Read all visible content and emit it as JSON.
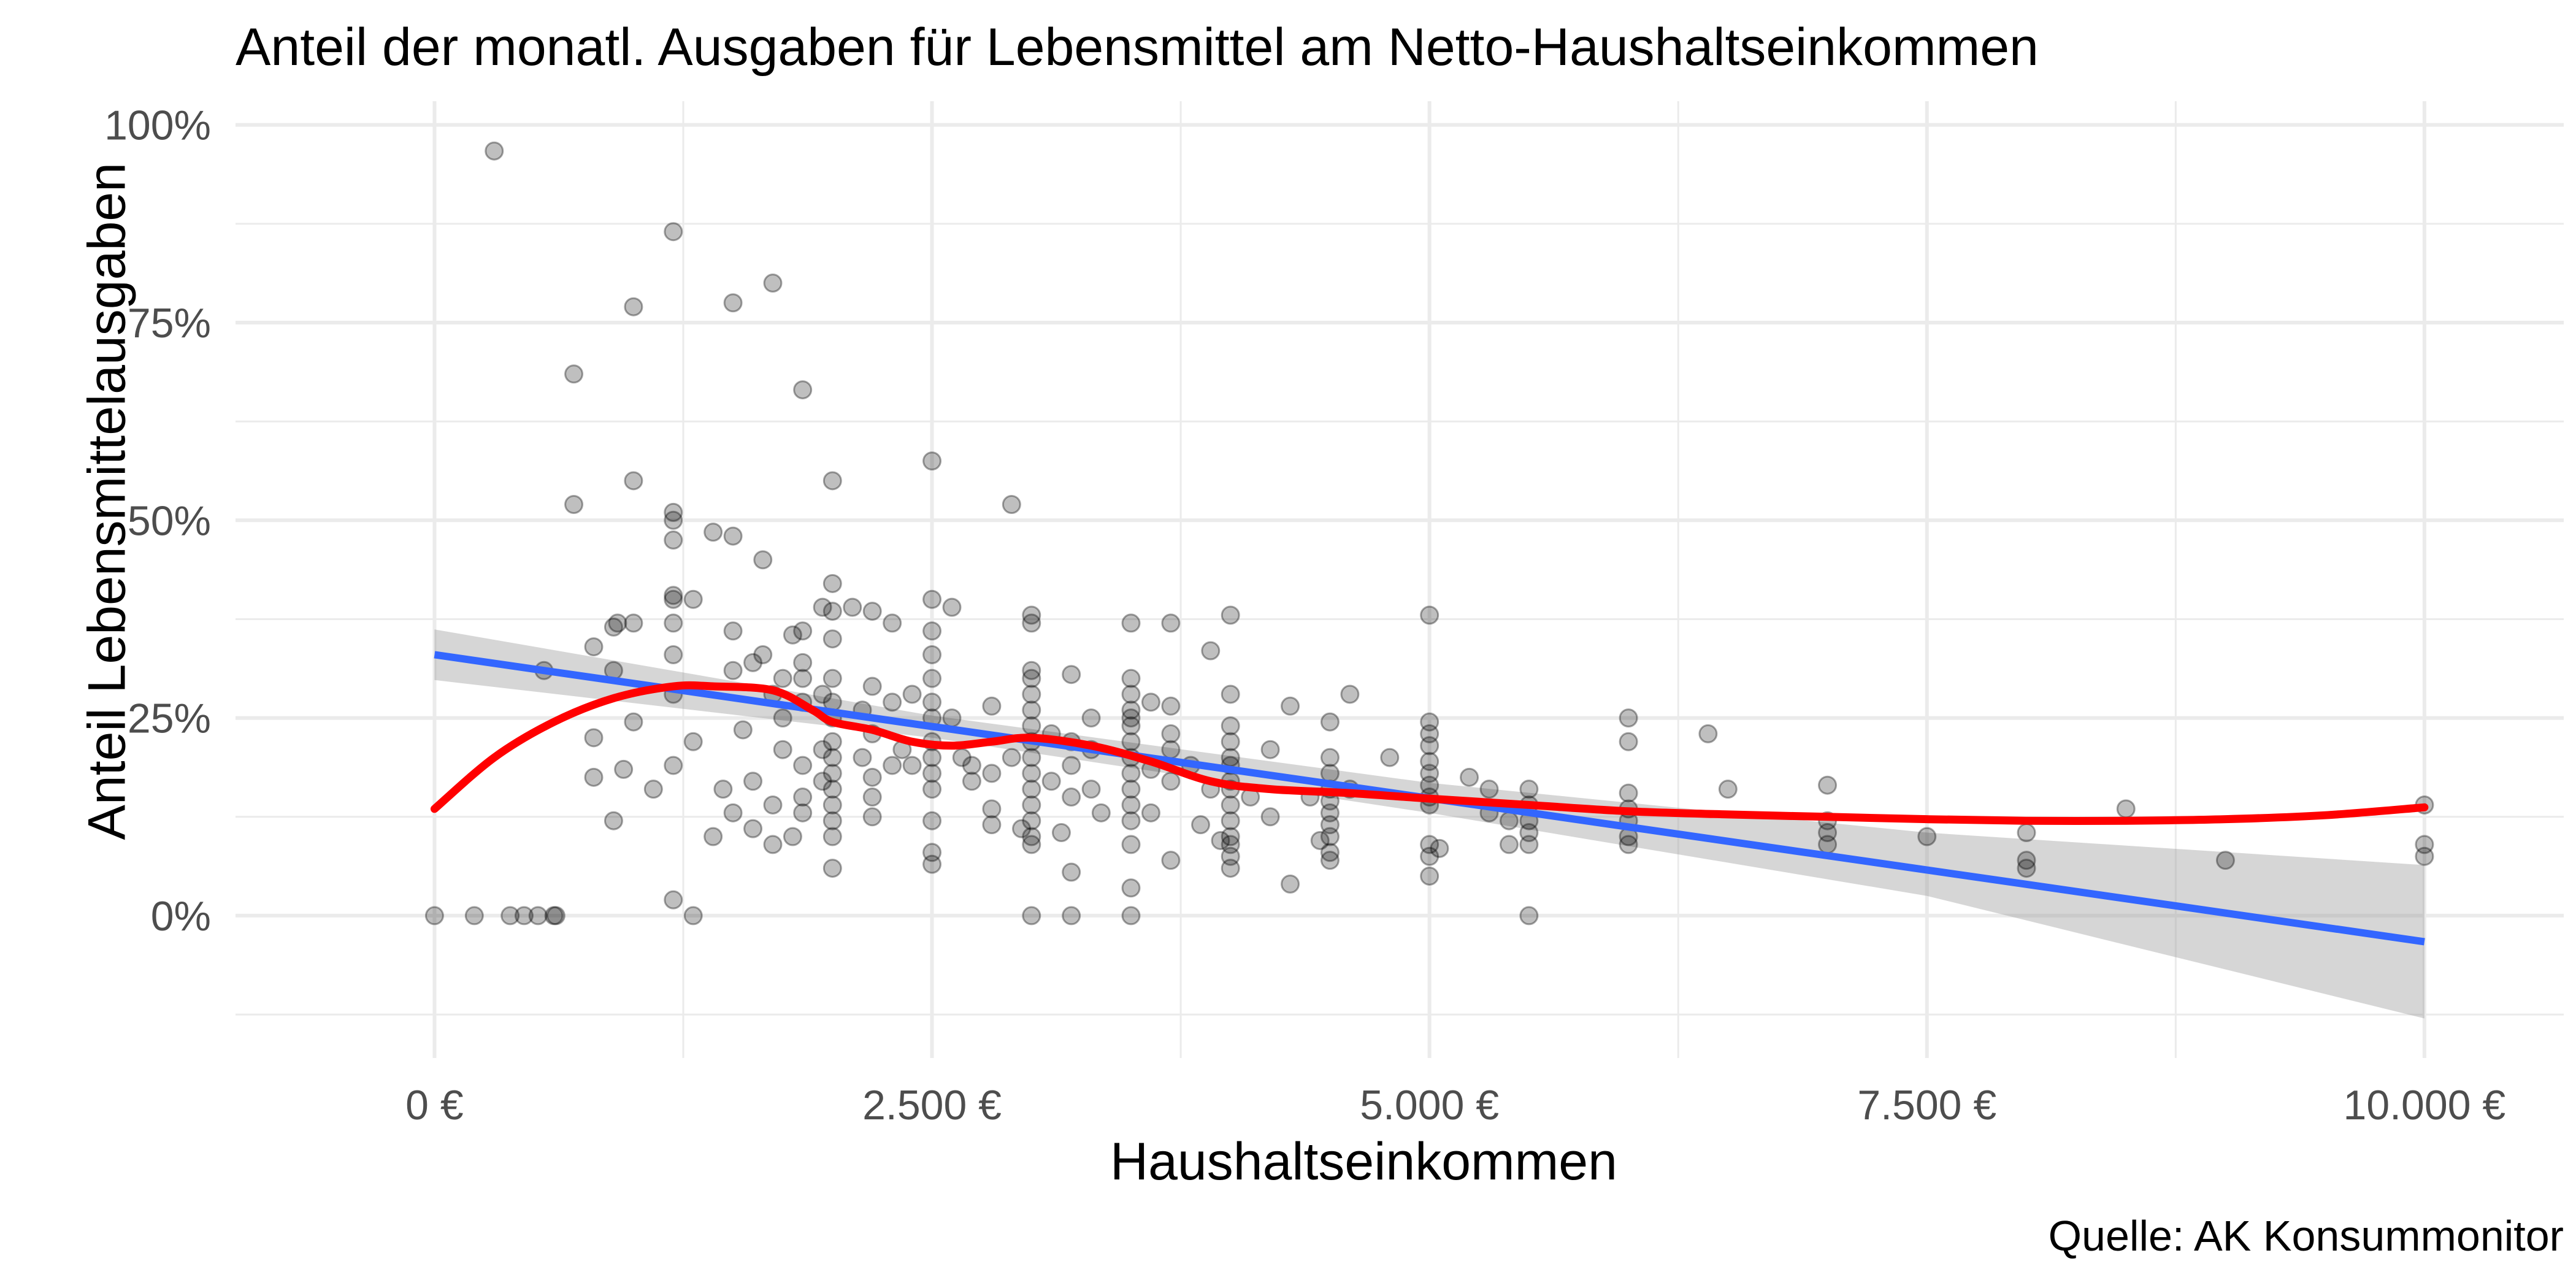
{
  "chart_data": {
    "type": "scatter",
    "title": "Anteil der monatl. Ausgaben für Lebensmittel am Netto-Haushaltseinkommen",
    "xlabel": "Haushaltseinkommen",
    "ylabel": "Anteil Lebensmittelausgaben",
    "caption": "Quelle: AK Konsummonitor",
    "xlim": [
      -1000,
      10700
    ],
    "ylim": [
      -0.18,
      1.03
    ],
    "x_ticks": [
      0,
      2500,
      5000,
      7500,
      10000
    ],
    "x_tick_labels": [
      "0 €",
      "2.500 €",
      "5.000 €",
      "7.500 €",
      "10.000 €"
    ],
    "y_ticks": [
      0,
      0.25,
      0.5,
      0.75,
      1.0
    ],
    "y_tick_labels": [
      "0%",
      "25%",
      "50%",
      "75%",
      "100%"
    ],
    "grid": true,
    "colors": {
      "points": "#000000",
      "linear_fit": "#3366ff",
      "loess": "#ff0000",
      "ci_band": "#999999",
      "grid": "#ebebeb"
    },
    "points": [
      [
        0,
        0
      ],
      [
        200,
        0
      ],
      [
        380,
        0
      ],
      [
        450,
        0
      ],
      [
        520,
        0
      ],
      [
        600,
        0
      ],
      [
        610,
        0
      ],
      [
        300,
        0.967
      ],
      [
        550,
        0.31
      ],
      [
        700,
        0.685
      ],
      [
        700,
        0.52
      ],
      [
        800,
        0.34
      ],
      [
        800,
        0.175
      ],
      [
        800,
        0.225
      ],
      [
        900,
        0.365
      ],
      [
        900,
        0.31
      ],
      [
        900,
        0.12
      ],
      [
        920,
        0.37
      ],
      [
        950,
        0.185
      ],
      [
        1000,
        0.77
      ],
      [
        1000,
        0.55
      ],
      [
        1000,
        0.37
      ],
      [
        1000,
        0.245
      ],
      [
        1100,
        0.16
      ],
      [
        1200,
        0.865
      ],
      [
        1200,
        0.51
      ],
      [
        1200,
        0.5
      ],
      [
        1200,
        0.475
      ],
      [
        1200,
        0.405
      ],
      [
        1200,
        0.4
      ],
      [
        1200,
        0.37
      ],
      [
        1200,
        0.33
      ],
      [
        1200,
        0.28
      ],
      [
        1200,
        0.19
      ],
      [
        1200,
        0.02
      ],
      [
        1300,
        0.4
      ],
      [
        1300,
        0.22
      ],
      [
        1300,
        0
      ],
      [
        1400,
        0.485
      ],
      [
        1400,
        0.1
      ],
      [
        1450,
        0.16
      ],
      [
        1500,
        0.775
      ],
      [
        1500,
        0.48
      ],
      [
        1500,
        0.36
      ],
      [
        1500,
        0.31
      ],
      [
        1500,
        0.13
      ],
      [
        1550,
        0.235
      ],
      [
        1600,
        0.32
      ],
      [
        1600,
        0.17
      ],
      [
        1600,
        0.11
      ],
      [
        1650,
        0.45
      ],
      [
        1650,
        0.33
      ],
      [
        1700,
        0.8
      ],
      [
        1700,
        0.28
      ],
      [
        1700,
        0.14
      ],
      [
        1700,
        0.09
      ],
      [
        1750,
        0.3
      ],
      [
        1750,
        0.25
      ],
      [
        1750,
        0.21
      ],
      [
        1800,
        0.355
      ],
      [
        1800,
        0.1
      ],
      [
        1850,
        0.665
      ],
      [
        1850,
        0.36
      ],
      [
        1850,
        0.32
      ],
      [
        1850,
        0.3
      ],
      [
        1850,
        0.27
      ],
      [
        1850,
        0.19
      ],
      [
        1850,
        0.15
      ],
      [
        1850,
        0.13
      ],
      [
        1950,
        0.39
      ],
      [
        1950,
        0.28
      ],
      [
        1950,
        0.21
      ],
      [
        1950,
        0.17
      ],
      [
        2000,
        0.55
      ],
      [
        2000,
        0.42
      ],
      [
        2000,
        0.385
      ],
      [
        2000,
        0.35
      ],
      [
        2000,
        0.3
      ],
      [
        2000,
        0.27
      ],
      [
        2000,
        0.25
      ],
      [
        2000,
        0.22
      ],
      [
        2000,
        0.2
      ],
      [
        2000,
        0.18
      ],
      [
        2000,
        0.16
      ],
      [
        2000,
        0.14
      ],
      [
        2000,
        0.12
      ],
      [
        2000,
        0.1
      ],
      [
        2000,
        0.06
      ],
      [
        2100,
        0.39
      ],
      [
        2150,
        0.26
      ],
      [
        2150,
        0.2
      ],
      [
        2200,
        0.385
      ],
      [
        2200,
        0.29
      ],
      [
        2200,
        0.23
      ],
      [
        2200,
        0.175
      ],
      [
        2200,
        0.15
      ],
      [
        2200,
        0.125
      ],
      [
        2300,
        0.37
      ],
      [
        2300,
        0.27
      ],
      [
        2300,
        0.19
      ],
      [
        2350,
        0.21
      ],
      [
        2400,
        0.28
      ],
      [
        2400,
        0.19
      ],
      [
        2500,
        0.575
      ],
      [
        2500,
        0.4
      ],
      [
        2500,
        0.36
      ],
      [
        2500,
        0.33
      ],
      [
        2500,
        0.3
      ],
      [
        2500,
        0.27
      ],
      [
        2500,
        0.25
      ],
      [
        2500,
        0.22
      ],
      [
        2500,
        0.2
      ],
      [
        2500,
        0.18
      ],
      [
        2500,
        0.16
      ],
      [
        2500,
        0.12
      ],
      [
        2500,
        0.08
      ],
      [
        2500,
        0.065
      ],
      [
        2600,
        0.39
      ],
      [
        2600,
        0.25
      ],
      [
        2650,
        0.2
      ],
      [
        2700,
        0.19
      ],
      [
        2700,
        0.17
      ],
      [
        2800,
        0.265
      ],
      [
        2800,
        0.18
      ],
      [
        2800,
        0.135
      ],
      [
        2800,
        0.115
      ],
      [
        2900,
        0.52
      ],
      [
        2900,
        0.2
      ],
      [
        2950,
        0.11
      ],
      [
        3000,
        0.38
      ],
      [
        3000,
        0.37
      ],
      [
        3000,
        0.31
      ],
      [
        3000,
        0.3
      ],
      [
        3000,
        0.28
      ],
      [
        3000,
        0.26
      ],
      [
        3000,
        0.24
      ],
      [
        3000,
        0.22
      ],
      [
        3000,
        0.2
      ],
      [
        3000,
        0.18
      ],
      [
        3000,
        0.16
      ],
      [
        3000,
        0.14
      ],
      [
        3000,
        0.12
      ],
      [
        3000,
        0.1
      ],
      [
        3000,
        0.09
      ],
      [
        3000,
        0
      ],
      [
        3100,
        0.23
      ],
      [
        3100,
        0.17
      ],
      [
        3150,
        0.105
      ],
      [
        3200,
        0.305
      ],
      [
        3200,
        0.22
      ],
      [
        3200,
        0.19
      ],
      [
        3200,
        0.15
      ],
      [
        3200,
        0.055
      ],
      [
        3200,
        0
      ],
      [
        3300,
        0.25
      ],
      [
        3300,
        0.21
      ],
      [
        3300,
        0.16
      ],
      [
        3350,
        0.13
      ],
      [
        3500,
        0.37
      ],
      [
        3500,
        0.3
      ],
      [
        3500,
        0.28
      ],
      [
        3500,
        0.26
      ],
      [
        3500,
        0.25
      ],
      [
        3500,
        0.24
      ],
      [
        3500,
        0.22
      ],
      [
        3500,
        0.2
      ],
      [
        3500,
        0.18
      ],
      [
        3500,
        0.16
      ],
      [
        3500,
        0.14
      ],
      [
        3500,
        0.12
      ],
      [
        3500,
        0.09
      ],
      [
        3500,
        0.035
      ],
      [
        3500,
        0
      ],
      [
        3600,
        0.27
      ],
      [
        3600,
        0.185
      ],
      [
        3600,
        0.13
      ],
      [
        3700,
        0.37
      ],
      [
        3700,
        0.265
      ],
      [
        3700,
        0.23
      ],
      [
        3700,
        0.21
      ],
      [
        3700,
        0.17
      ],
      [
        3700,
        0.07
      ],
      [
        3800,
        0.19
      ],
      [
        3850,
        0.115
      ],
      [
        3900,
        0.335
      ],
      [
        3900,
        0.16
      ],
      [
        3950,
        0.095
      ],
      [
        4000,
        0.38
      ],
      [
        4000,
        0.28
      ],
      [
        4000,
        0.24
      ],
      [
        4000,
        0.22
      ],
      [
        4000,
        0.2
      ],
      [
        4000,
        0.19
      ],
      [
        4000,
        0.17
      ],
      [
        4000,
        0.16
      ],
      [
        4000,
        0.14
      ],
      [
        4000,
        0.12
      ],
      [
        4000,
        0.1
      ],
      [
        4000,
        0.09
      ],
      [
        4000,
        0.075
      ],
      [
        4000,
        0.06
      ],
      [
        4100,
        0.15
      ],
      [
        4200,
        0.21
      ],
      [
        4200,
        0.125
      ],
      [
        4300,
        0.265
      ],
      [
        4300,
        0.04
      ],
      [
        4400,
        0.15
      ],
      [
        4450,
        0.095
      ],
      [
        4500,
        0.245
      ],
      [
        4500,
        0.2
      ],
      [
        4500,
        0.18
      ],
      [
        4500,
        0.16
      ],
      [
        4500,
        0.145
      ],
      [
        4500,
        0.13
      ],
      [
        4500,
        0.115
      ],
      [
        4500,
        0.1
      ],
      [
        4500,
        0.08
      ],
      [
        4500,
        0.07
      ],
      [
        4600,
        0.28
      ],
      [
        4600,
        0.16
      ],
      [
        4800,
        0.2
      ],
      [
        5000,
        0.38
      ],
      [
        5000,
        0.245
      ],
      [
        5000,
        0.23
      ],
      [
        5000,
        0.215
      ],
      [
        5000,
        0.195
      ],
      [
        5000,
        0.18
      ],
      [
        5000,
        0.165
      ],
      [
        5000,
        0.15
      ],
      [
        5000,
        0.14
      ],
      [
        5000,
        0.09
      ],
      [
        5000,
        0.075
      ],
      [
        5000,
        0.05
      ],
      [
        5050,
        0.085
      ],
      [
        5200,
        0.175
      ],
      [
        5300,
        0.13
      ],
      [
        5300,
        0.16
      ],
      [
        5400,
        0.09
      ],
      [
        5400,
        0.12
      ],
      [
        5500,
        0.16
      ],
      [
        5500,
        0.14
      ],
      [
        5500,
        0.12
      ],
      [
        5500,
        0.105
      ],
      [
        5500,
        0.09
      ],
      [
        5500,
        0
      ],
      [
        6000,
        0.25
      ],
      [
        6000,
        0.22
      ],
      [
        6000,
        0.155
      ],
      [
        6000,
        0.135
      ],
      [
        6000,
        0.12
      ],
      [
        6000,
        0.1
      ],
      [
        6000,
        0.09
      ],
      [
        6400,
        0.23
      ],
      [
        6500,
        0.16
      ],
      [
        7000,
        0.165
      ],
      [
        7000,
        0.12
      ],
      [
        7000,
        0.105
      ],
      [
        7000,
        0.09
      ],
      [
        7500,
        0.1
      ],
      [
        8000,
        0.105
      ],
      [
        8000,
        0.07
      ],
      [
        8000,
        0.06
      ],
      [
        8500,
        0.135
      ],
      [
        9000,
        0.07
      ],
      [
        10000,
        0.14
      ],
      [
        10000,
        0.09
      ],
      [
        10000,
        0.075
      ]
    ],
    "linear_fit": {
      "x": [
        0,
        10000
      ],
      "y": [
        0.33,
        -0.033
      ]
    },
    "ci_band": {
      "x": [
        0,
        2500,
        5000,
        7500,
        10000
      ],
      "lower": [
        0.298,
        0.225,
        0.13,
        0.025,
        -0.13
      ],
      "upper": [
        0.362,
        0.253,
        0.168,
        0.105,
        0.064
      ]
    },
    "loess": {
      "x": [
        0,
        300,
        600,
        900,
        1200,
        1400,
        1700,
        1900,
        2000,
        2200,
        2400,
        2600,
        2800,
        3000,
        3300,
        3600,
        3900,
        4200,
        4600,
        5000,
        5500,
        6000,
        6500,
        7000,
        7500,
        8000,
        8500,
        9000,
        9500,
        10000
      ],
      "y": [
        0.135,
        0.2,
        0.245,
        0.275,
        0.29,
        0.29,
        0.285,
        0.26,
        0.245,
        0.235,
        0.22,
        0.215,
        0.22,
        0.225,
        0.215,
        0.195,
        0.17,
        0.16,
        0.155,
        0.148,
        0.14,
        0.132,
        0.128,
        0.125,
        0.122,
        0.12,
        0.12,
        0.122,
        0.127,
        0.137
      ]
    }
  }
}
